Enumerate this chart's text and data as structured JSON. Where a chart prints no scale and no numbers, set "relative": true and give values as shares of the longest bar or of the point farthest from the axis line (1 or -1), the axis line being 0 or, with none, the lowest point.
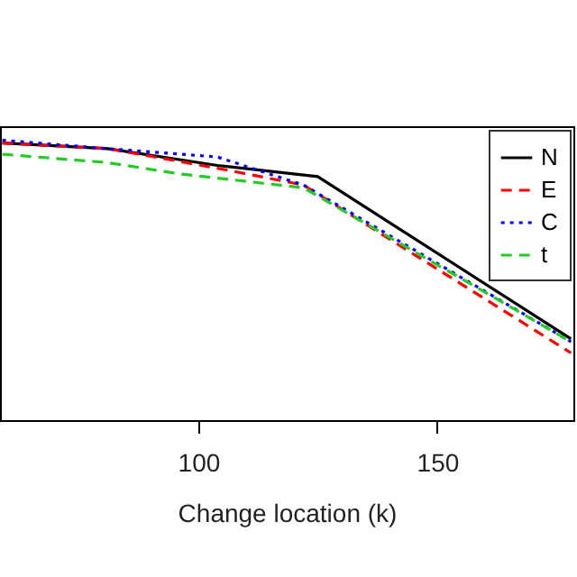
{
  "chart_data": {
    "type": "line",
    "xlabel": "Change location (k)",
    "relative": true,
    "xlim": [
      58.5,
      178.5
    ],
    "xticks": [
      100,
      150
    ],
    "legend": "top right",
    "grid": false,
    "series": [
      {
        "name": "N",
        "color": "#000000",
        "line_style": "solid",
        "x": [
          59,
          81,
          104,
          125,
          178
        ],
        "values": [
          0.99,
          0.97,
          0.91,
          0.87,
          0.29
        ]
      },
      {
        "name": "E",
        "color": "#ff0000",
        "line_style": "dashed",
        "x": [
          59,
          81,
          104,
          122,
          178
        ],
        "values": [
          0.99,
          0.97,
          0.9,
          0.84,
          0.24
        ]
      },
      {
        "name": "C",
        "color": "#0000ff",
        "line_style": "dotted",
        "x": [
          59,
          81,
          104,
          122,
          178
        ],
        "values": [
          1.0,
          0.97,
          0.94,
          0.84,
          0.28
        ]
      },
      {
        "name": "t",
        "color": "#22cc22",
        "line_style": "dashed",
        "x": [
          59,
          81,
          96,
          122,
          178
        ],
        "values": [
          0.95,
          0.92,
          0.88,
          0.83,
          0.28
        ]
      }
    ]
  }
}
